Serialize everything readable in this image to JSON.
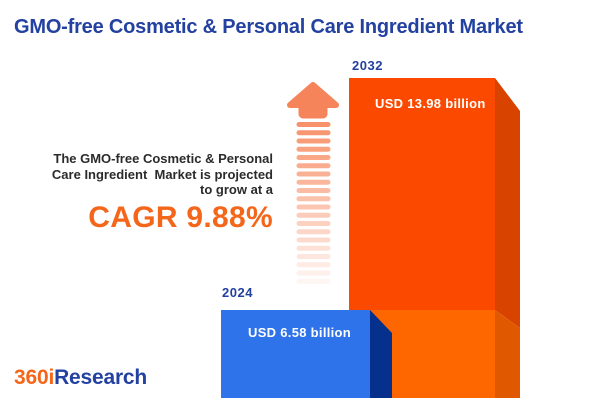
{
  "title": "GMO-free Cosmetic & Personal Care Ingredient Market",
  "projection": {
    "line1": "The GMO-free Cosmetic & Personal",
    "line2": "Care Ingredient  Market is projected",
    "line3": "to grow at a",
    "cagr": "CAGR 9.88%"
  },
  "logo": {
    "prefix": "360i",
    "suffix": "Research"
  },
  "colors": {
    "brand-blue": "#2341A0",
    "text-dark": "#2B2B2B",
    "accent-orange": "#F4661A",
    "arrow-solid": "#F5845A",
    "arrow-stripe": "#F7926B",
    "bar2024-front": "#2E73EA",
    "bar2024-side": "#05308C",
    "bar2032-front-top": "#FB4A00",
    "bar2032-front-bottom": "#FE6700",
    "bar2032-side-top": "#D84300",
    "bar2032-side-bottom": "#E05800"
  },
  "chart_data": {
    "type": "bar",
    "title": "GMO-free Cosmetic & Personal Care Ingredient Market",
    "categories": [
      "2024",
      "2032"
    ],
    "values": [
      6.58,
      13.98
    ],
    "unit": "USD billion",
    "value_labels": [
      "USD 6.58 billion",
      "USD 13.98 billion"
    ],
    "cagr_percent": 9.88,
    "annotations": [
      "The GMO-free Cosmetic & Personal Care Ingredient Market is projected to grow at a CAGR 9.88%"
    ],
    "bar_colors": [
      "#2E73EA",
      "#FB4A00"
    ],
    "legend": "none",
    "axes": "hidden",
    "style": "pictorial 3D extruded bars, baseline cropped at bottom edge, upward growth arrow between annotation and bars"
  }
}
